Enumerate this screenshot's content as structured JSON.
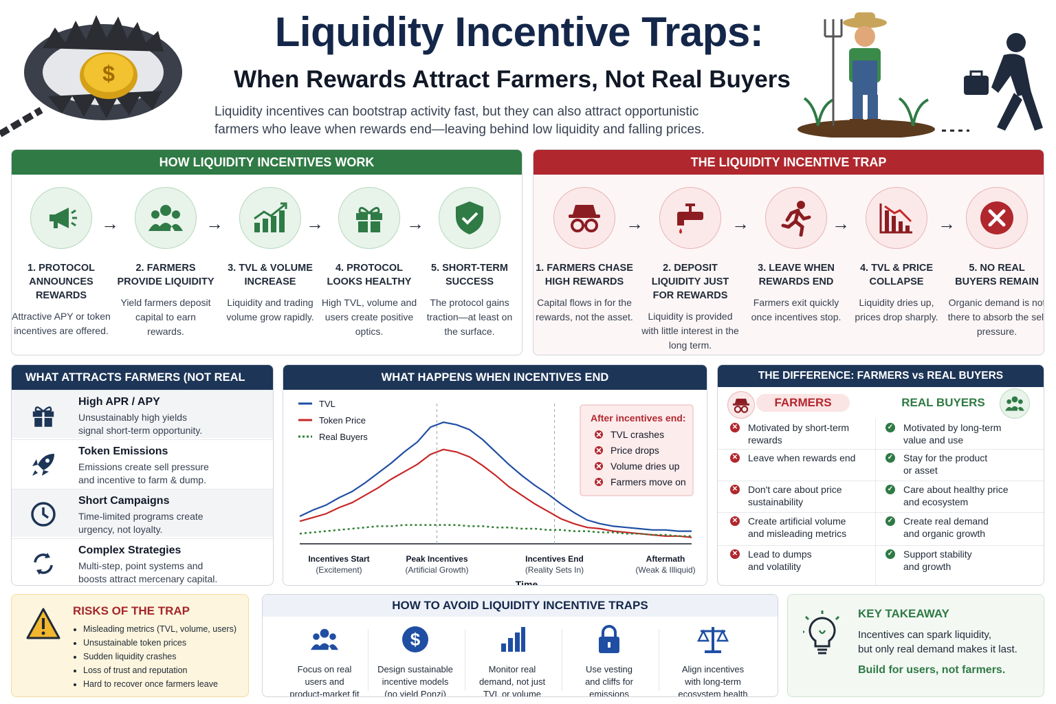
{
  "header": {
    "title": "Liquidity Incentive Traps:",
    "subtitle": "When Rewards Attract Farmers, Not Real Buyers",
    "intro_line1": "Liquidity incentives can bootstrap activity fast, but they can also attract opportunistic",
    "intro_line2": "farmers who leave when rewards end—leaving behind low liquidity and falling prices."
  },
  "how": {
    "heading": "HOW LIQUIDITY INCENTIVES WORK",
    "steps": [
      {
        "title": "1. PROTOCOL ANNOUNCES REWARDS",
        "desc": "Attractive APY or token incentives are offered.",
        "icon": "megaphone-icon"
      },
      {
        "title": "2. FARMERS PROVIDE LIQUIDITY",
        "desc": "Yield farmers deposit capital to earn rewards.",
        "icon": "users-icon"
      },
      {
        "title": "3. TVL & VOLUME INCREASE",
        "desc": "Liquidity and trading volume grow rapidly.",
        "icon": "growth-chart-icon"
      },
      {
        "title": "4. PROTOCOL LOOKS HEALTHY",
        "desc": "High TVL, volume and users create positive optics.",
        "icon": "gift-icon"
      },
      {
        "title": "5. SHORT-TERM SUCCESS",
        "desc": "The protocol gains traction—at least on the surface.",
        "icon": "shield-check-icon"
      }
    ]
  },
  "trap": {
    "heading": "THE LIQUIDITY INCENTIVE TRAP",
    "steps": [
      {
        "title": "1. FARMERS CHASE HIGH REWARDS",
        "desc": "Capital flows in for the rewards, not the asset.",
        "icon": "disguise-icon"
      },
      {
        "title": "2. DEPOSIT LIQUIDITY JUST FOR REWARDS",
        "desc": "Liquidity is provided with little interest in the long term.",
        "icon": "faucet-icon"
      },
      {
        "title": "3. LEAVE WHEN REWARDS END",
        "desc": "Farmers exit quickly once incentives stop.",
        "icon": "running-icon"
      },
      {
        "title": "4. TVL & PRICE COLLAPSE",
        "desc": "Liquidity dries up, prices drop sharply.",
        "icon": "falling-chart-icon"
      },
      {
        "title": "5. NO REAL BUYERS REMAIN",
        "desc": "Organic demand is not there to absorb the sell pressure.",
        "icon": "x-circle-icon"
      }
    ]
  },
  "attracts": {
    "heading": "WHAT ATTRACTS FARMERS (NOT REAL USERS)",
    "items": [
      {
        "title": "High APR / APY",
        "desc1": "Unsustainably high yields",
        "desc2": "signal short-term opportunity.",
        "icon": "gift-icon"
      },
      {
        "title": "Token Emissions",
        "desc1": "Emissions create sell pressure",
        "desc2": "and incentive to farm & dump.",
        "icon": "rocket-icon"
      },
      {
        "title": "Short Campaigns",
        "desc1": "Time-limited programs create",
        "desc2": "urgency, not loyalty.",
        "icon": "clock-icon"
      },
      {
        "title": "Complex Strategies",
        "desc1": "Multi-step, point systems and",
        "desc2": "boosts attract mercenary capital.",
        "icon": "cycle-arrows-icon"
      }
    ]
  },
  "chart_data": {
    "type": "line",
    "title": "WHAT HAPPENS WHEN INCENTIVES END",
    "xlabel": "Time",
    "ylabel": "",
    "x_ticks": [
      {
        "label": "Incentives Start",
        "sub": "(Excitement)"
      },
      {
        "label": "Peak Incentives",
        "sub": "(Artificial Growth)"
      },
      {
        "label": "Incentives End",
        "sub": "(Reality Sets In)"
      },
      {
        "label": "Aftermath",
        "sub": "(Weak & Illiquid)"
      }
    ],
    "x": [
      0,
      1,
      2,
      3,
      4,
      5,
      6,
      7,
      8,
      9,
      10,
      11,
      12,
      13,
      14,
      15,
      16,
      17,
      18,
      19,
      20,
      21,
      22,
      23,
      24,
      25,
      26,
      27,
      28,
      29,
      30
    ],
    "ylim": [
      0,
      100
    ],
    "series": [
      {
        "name": "TVL",
        "color": "#1f4ea3",
        "dash": false,
        "values": [
          20,
          25,
          29,
          35,
          40,
          47,
          55,
          63,
          72,
          80,
          92,
          96,
          94,
          90,
          82,
          72,
          62,
          53,
          45,
          38,
          30,
          23,
          17,
          14,
          12,
          11,
          10,
          9,
          9,
          8,
          8
        ]
      },
      {
        "name": "Token Price",
        "color": "#c62828",
        "dash": false,
        "values": [
          16,
          19,
          22,
          27,
          31,
          37,
          43,
          50,
          56,
          62,
          70,
          74,
          72,
          68,
          61,
          53,
          44,
          37,
          30,
          24,
          18,
          14,
          11,
          10,
          8,
          7,
          6,
          5,
          4,
          4,
          3
        ]
      },
      {
        "name": "Real Buyers",
        "color": "#2e7d32",
        "dash": true,
        "values": [
          6,
          7,
          8,
          9,
          10,
          11,
          12,
          12,
          13,
          13,
          13,
          13,
          13,
          12,
          12,
          11,
          11,
          10,
          10,
          9,
          9,
          8,
          8,
          7,
          7,
          6,
          6,
          5,
          5,
          4,
          4
        ]
      }
    ],
    "callout": {
      "title": "After incentives end:",
      "items": [
        "TVL crashes",
        "Price drops",
        "Volume dries up",
        "Farmers move on"
      ]
    },
    "grid": false,
    "legend": "top-left"
  },
  "compare": {
    "heading": "THE DIFFERENCE: FARMERS vs REAL BUYERS",
    "farmers_label": "FARMERS",
    "buyers_label": "REAL BUYERS",
    "rows": [
      {
        "f1": "Motivated by short-term",
        "f2": "rewards",
        "b1": "Motivated by long-term",
        "b2": "value and use"
      },
      {
        "f1": "Leave when rewards end",
        "f2": "",
        "b1": "Stay for the product",
        "b2": "or asset"
      },
      {
        "f1": "Don't care about price",
        "f2": "sustainability",
        "b1": "Care about healthy price",
        "b2": "and ecosystem"
      },
      {
        "f1": "Create artificial volume",
        "f2": "and misleading metrics",
        "b1": "Create real demand",
        "b2": "and organic growth"
      },
      {
        "f1": "Lead to dumps",
        "f2": "and volatility",
        "b1": "Support stability",
        "b2": "and growth"
      }
    ]
  },
  "risks": {
    "heading": "RISKS OF THE TRAP",
    "items": [
      "Misleading metrics (TVL, volume, users)",
      "Unsustainable token prices",
      "Sudden liquidity crashes",
      "Loss of trust and reputation",
      "Hard to recover once farmers leave"
    ]
  },
  "avoid": {
    "heading": "HOW TO AVOID LIQUIDITY INCENTIVE TRAPS",
    "items": [
      {
        "l1": "Focus on real",
        "l2": "users and",
        "l3": "product-market fit",
        "icon": "users-icon"
      },
      {
        "l1": "Design sustainable",
        "l2": "incentive models",
        "l3": "(no yield Ponzi)",
        "icon": "dollar-icon"
      },
      {
        "l1": "Monitor real",
        "l2": "demand, not just",
        "l3": "TVL or volume",
        "icon": "bar-chart-icon"
      },
      {
        "l1": "Use vesting",
        "l2": "and cliffs for",
        "l3": "emissions",
        "icon": "lock-icon"
      },
      {
        "l1": "Align incentives",
        "l2": "with long-term",
        "l3": "ecosystem health",
        "icon": "scales-icon"
      }
    ]
  },
  "takeaway": {
    "heading": "KEY TAKEAWAY",
    "line1": "Incentives can spark liquidity,",
    "line2": "but only real demand makes it last.",
    "cta": "Build for users, not farmers."
  },
  "colors": {
    "green": "#2f7a45",
    "red": "#b0272d",
    "navy": "#1d3557",
    "title": "#14274a"
  }
}
